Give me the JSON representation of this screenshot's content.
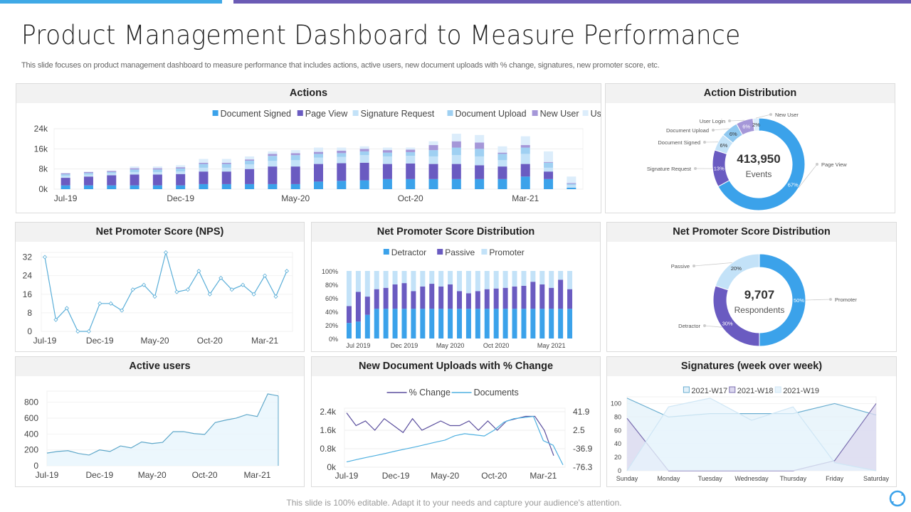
{
  "header": {
    "title": "Product Management Dashboard to Measure Performance",
    "subtitle": "This slide focuses on product management dashboard to measure performance that includes actions, active users, new document uploads with % change, signatures, new promoter score, etc.",
    "accent_blue": "#3fa9e6",
    "accent_purple": "#6b5bb5"
  },
  "footer": {
    "text": "This slide is 100% editable. Adapt it to your needs and capture your audience's attention.",
    "icon": "refresh-cycle-icon"
  },
  "chart_data": [
    {
      "title": "Actions",
      "type": "bar",
      "stacked": true,
      "legend": "top-right",
      "categories": [
        "Jul-19",
        "Aug-19",
        "Sep-19",
        "Oct-19",
        "Nov-19",
        "Dec-19",
        "Jan-20",
        "Feb-20",
        "Mar-20",
        "Apr-20",
        "May-20",
        "Jun-20",
        "Jul-20",
        "Aug-20",
        "Sep-20",
        "Oct-20",
        "Nov-20",
        "Dec-20",
        "Jan-21",
        "Feb-21",
        "Mar-21",
        "Apr-21",
        "May-21"
      ],
      "x_tick_labels": [
        "Jul-19",
        "Dec-19",
        "May-20",
        "Oct-20",
        "Mar-21"
      ],
      "y_tick_labels": [
        "0k",
        "8k",
        "16k",
        "24k"
      ],
      "ylim": [
        0,
        24000
      ],
      "series": [
        {
          "name": "Document Signed",
          "color": "#3ba2ea",
          "values": [
            1500,
            1500,
            1500,
            1500,
            1500,
            1500,
            2000,
            2000,
            2000,
            2000,
            2000,
            3000,
            3300,
            3500,
            4000,
            4000,
            4000,
            4000,
            4000,
            4000,
            5000,
            4000,
            600
          ]
        },
        {
          "name": "Page View",
          "color": "#6a5bc1",
          "values": [
            3000,
            3500,
            4000,
            4300,
            4300,
            4500,
            5000,
            5000,
            6000,
            7000,
            7000,
            7000,
            7000,
            7000,
            6000,
            6200,
            6000,
            6000,
            5500,
            5000,
            5000,
            3000,
            0
          ]
        },
        {
          "name": "Signature Request",
          "color": "#c3e2f8",
          "values": [
            800,
            800,
            800,
            1000,
            1000,
            1000,
            1500,
            1500,
            1800,
            2200,
            2500,
            2500,
            2500,
            3000,
            3000,
            3000,
            3000,
            3500,
            3500,
            2500,
            4000,
            1500,
            1000
          ]
        },
        {
          "name": "Document Upload",
          "color": "#9fd0f2",
          "values": [
            600,
            600,
            500,
            1000,
            1000,
            1200,
            1500,
            1500,
            1500,
            2000,
            2000,
            1500,
            1500,
            1500,
            1500,
            1500,
            2500,
            3000,
            3000,
            2500,
            2500,
            2000,
            500
          ]
        },
        {
          "name": "New User",
          "color": "#a597d8",
          "values": [
            400,
            400,
            400,
            500,
            500,
            500,
            500,
            500,
            500,
            800,
            800,
            800,
            1000,
            1000,
            1000,
            1000,
            2000,
            2500,
            2500,
            500,
            1000,
            300,
            300
          ]
        },
        {
          "name": "User Login",
          "color": "#dcedfb",
          "values": [
            200,
            200,
            200,
            700,
            700,
            800,
            1500,
            1500,
            1200,
            1000,
            1200,
            1700,
            1200,
            1000,
            1000,
            800,
            1500,
            3000,
            3000,
            2500,
            3500,
            4200,
            2600
          ]
        }
      ]
    },
    {
      "title": "Action Distribution",
      "type": "pie",
      "donut": true,
      "center_value": "413,950",
      "center_label": "Events",
      "slices": [
        {
          "name": "Page View",
          "value": 67,
          "label": "67%",
          "color": "#3ba2ea"
        },
        {
          "name": "Signature  Request",
          "value": 13,
          "label": "13%",
          "color": "#6a5bc1"
        },
        {
          "name": "Document  Signed",
          "value": 6,
          "label": "6%",
          "color": "#c3e2f8"
        },
        {
          "name": "Document  Upload",
          "value": 6,
          "label": "6%",
          "color": "#8fc8f0"
        },
        {
          "name": "User Login",
          "value": 6,
          "label": "6%",
          "color": "#a597d8"
        },
        {
          "name": "New User",
          "value": 2,
          "label": "2%",
          "color": "#dcedfb"
        }
      ]
    },
    {
      "title": "Net Promoter Score (NPS)",
      "type": "line",
      "x_tick_labels": [
        "Jul-19",
        "Dec-19",
        "May-20",
        "Oct-20",
        "Mar-21"
      ],
      "y_tick_labels": [
        "0",
        "8",
        "16",
        "24",
        "32"
      ],
      "ylim": [
        0,
        34
      ],
      "color": "#5aaed8",
      "values": [
        32,
        5,
        10,
        0,
        0,
        12,
        12,
        9,
        18,
        20,
        15,
        34,
        17,
        18,
        26,
        16,
        23,
        18,
        20,
        16,
        24,
        15,
        26
      ]
    },
    {
      "title": "Net Promoter Score Distribution",
      "type": "bar",
      "stacked": true,
      "percent": true,
      "legend": "top",
      "x_tick_labels": [
        "Jul 2019",
        "Dec 2019",
        "May 2020",
        "Oct 2020",
        "May 2021"
      ],
      "y_tick_labels": [
        "0%",
        "20%",
        "40%",
        "60%",
        "80%",
        "100%"
      ],
      "ylim": [
        0,
        100
      ],
      "series": [
        {
          "name": "Detractor",
          "color": "#3ba2ea",
          "values": [
            23,
            25,
            35,
            44,
            44,
            44,
            44,
            44,
            44,
            44,
            44,
            44,
            44,
            44,
            44,
            44,
            44,
            44,
            44,
            44,
            44,
            44,
            44,
            44,
            44
          ]
        },
        {
          "name": "Passive",
          "color": "#6a5bc1",
          "values": [
            25,
            44,
            27,
            29,
            31,
            36,
            38,
            26,
            33,
            37,
            33,
            36,
            26,
            23,
            26,
            29,
            30,
            31,
            33,
            34,
            40,
            36,
            31,
            43,
            29
          ]
        },
        {
          "name": "Promoter",
          "color": "#c3e2f8",
          "values": [
            52,
            31,
            38,
            27,
            25,
            20,
            18,
            30,
            23,
            19,
            23,
            20,
            30,
            33,
            30,
            27,
            26,
            25,
            23,
            22,
            16,
            20,
            25,
            13,
            27
          ]
        }
      ]
    },
    {
      "title": "Net Promoter Score Distribution",
      "type": "pie",
      "donut": true,
      "center_value": "9,707",
      "center_label": "Respondents",
      "slices": [
        {
          "name": "Promoter",
          "value": 50,
          "label": "50%",
          "color": "#3ba2ea"
        },
        {
          "name": "Detractor",
          "value": 30,
          "label": "30%",
          "color": "#6a5bc1"
        },
        {
          "name": "Passive",
          "value": 20,
          "label": "20%",
          "color": "#c3e2f8"
        }
      ]
    },
    {
      "title": "Active users",
      "type": "area",
      "x_tick_labels": [
        "Jul-19",
        "Dec-19",
        "May-20",
        "Oct-20",
        "Mar-21"
      ],
      "y_tick_labels": [
        "0",
        "200",
        "400",
        "600",
        "800"
      ],
      "ylim": [
        0,
        940
      ],
      "color": "#5ea7c9",
      "fill": "#e6f4fc",
      "values": [
        160,
        180,
        190,
        155,
        135,
        200,
        180,
        250,
        225,
        300,
        280,
        295,
        430,
        430,
        405,
        395,
        545,
        575,
        600,
        645,
        620,
        905,
        880
      ]
    },
    {
      "title": "New Document Uploads with % Change",
      "type": "line",
      "legend": "top",
      "x_tick_labels": [
        "Jul-19",
        "Dec-19",
        "May-20",
        "Oct-20",
        "Mar-21"
      ],
      "y_tick_labels": [
        "0k",
        "0.8k",
        "1.6k",
        "2.4k"
      ],
      "ylim": [
        0,
        2400
      ],
      "y2_tick_labels": [
        "-76.3",
        "-36.9",
        "2.5",
        "41.9"
      ],
      "y2lim": [
        -76.3,
        41.9
      ],
      "series": [
        {
          "name": "% Change",
          "axis": "right",
          "color": "#5b4f9e",
          "values": [
            39.4,
            12.3,
            22.2,
            2.5,
            27.1,
            12.3,
            -2.4,
            27.1,
            2.5,
            12.3,
            22.2,
            12.3,
            12.3,
            22.2,
            2.5,
            22.2,
            2.5,
            22.2,
            27.1,
            32.1,
            32.1,
            2.5,
            -51.7
          ]
        },
        {
          "name": "Documents",
          "axis": "left",
          "color": "#4fb0e0",
          "values": [
            230,
            330,
            420,
            510,
            600,
            700,
            790,
            880,
            980,
            1080,
            1170,
            1360,
            1450,
            1400,
            1350,
            1600,
            1950,
            2100,
            2150,
            2200,
            1150,
            950,
            100
          ]
        }
      ]
    },
    {
      "title": "Signatures (week over week)",
      "type": "area",
      "legend": "top",
      "categories": [
        "Sunday",
        "Monday",
        "Tuesday",
        "Wednesday",
        "Thursday",
        "Friday",
        "Saturday"
      ],
      "y_tick_labels": [
        "0",
        "20",
        "40",
        "60",
        "80",
        "100"
      ],
      "ylim": [
        0,
        110
      ],
      "series": [
        {
          "name": "2021-W17",
          "color": "#6aaed0",
          "fill": "#e3f1fa",
          "values": [
            108,
            80,
            85,
            85,
            85,
            100,
            83
          ]
        },
        {
          "name": "2021-W18",
          "color": "#7b6fb0",
          "fill": "#dcd8ef",
          "values": [
            78,
            0,
            0,
            0,
            0,
            15,
            100
          ]
        },
        {
          "name": "2021-W19",
          "color": "#cfe6f5",
          "fill": "#e8f4fc",
          "values": [
            0,
            95,
            108,
            75,
            95,
            12,
            0
          ]
        }
      ]
    }
  ]
}
